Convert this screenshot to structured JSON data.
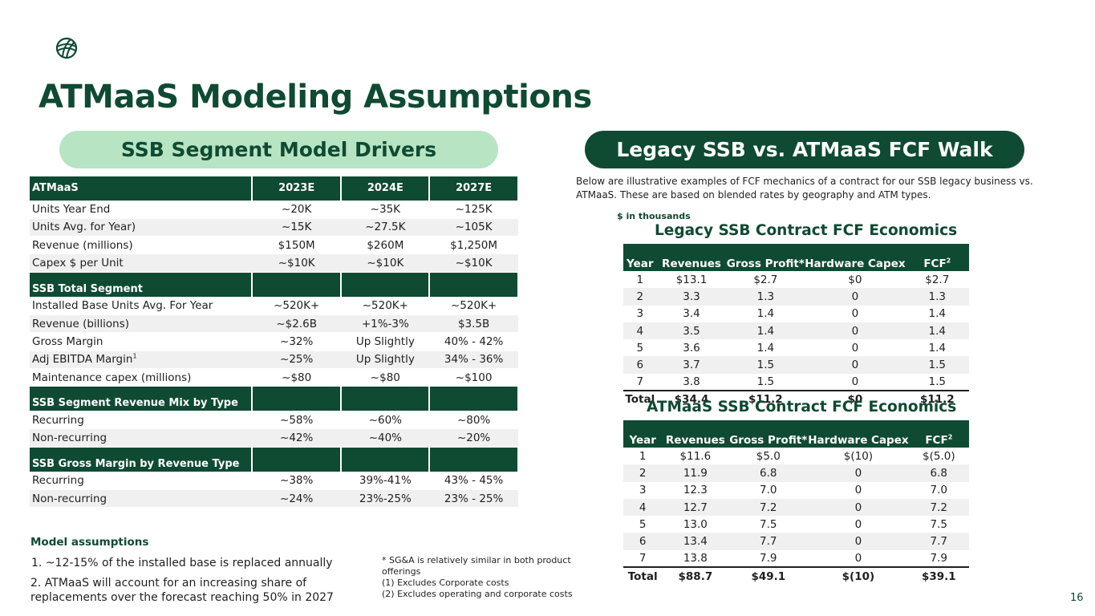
{
  "title": "ATMaaS Modeling Assumptions",
  "page_number": "16",
  "colors": {
    "brand_dark": "#0f4a32",
    "brand_light": "#b7e4c3",
    "row_alt": "#f0f0f0"
  },
  "left_section": {
    "heading": "SSB Segment Model Drivers",
    "columns": [
      "ATMaaS",
      "2023E",
      "2024E",
      "2027E"
    ],
    "rows": [
      {
        "type": "data",
        "cells": [
          "Units Year End",
          "~20K",
          "~35K",
          "~125K"
        ]
      },
      {
        "type": "data",
        "cells": [
          "Units Avg. for Year)",
          "~15K",
          "~27.5K",
          "~105K"
        ]
      },
      {
        "type": "data",
        "cells": [
          "Revenue (millions)",
          "$150M",
          "$260M",
          "$1,250M"
        ]
      },
      {
        "type": "data",
        "cells": [
          "Capex $ per Unit",
          "~$10K",
          "~$10K",
          "~$10K"
        ]
      },
      {
        "type": "section",
        "label": "SSB Total Segment"
      },
      {
        "type": "data",
        "cells": [
          "Installed Base Units Avg. For Year",
          "~520K+",
          "~520K+",
          "~520K+"
        ]
      },
      {
        "type": "data",
        "cells": [
          "Revenue (billions)",
          "~$2.6B",
          "+1%-3%",
          "$3.5B"
        ]
      },
      {
        "type": "data",
        "cells": [
          "Gross Margin",
          "~32%",
          "Up Slightly",
          "40% - 42%"
        ]
      },
      {
        "type": "data",
        "cells": [
          "Adj EBITDA Margin",
          "~25%",
          "Up Slightly",
          "34% - 36%"
        ],
        "sup": "1"
      },
      {
        "type": "data",
        "cells": [
          "Maintenance capex (millions)",
          "~$80",
          "~$80",
          "~$100"
        ]
      },
      {
        "type": "section",
        "label": "SSB Segment Revenue  Mix by Type"
      },
      {
        "type": "data",
        "cells": [
          "Recurring",
          "~58%",
          "~60%",
          "~80%"
        ]
      },
      {
        "type": "data",
        "cells": [
          "Non-recurring",
          "~42%",
          "~40%",
          "~20%"
        ]
      },
      {
        "type": "section",
        "label": "SSB Gross Margin by Revenue Type"
      },
      {
        "type": "data",
        "cells": [
          "Recurring",
          "~38%",
          "39%-41%",
          "43% - 45%"
        ]
      },
      {
        "type": "data",
        "cells": [
          "Non-recurring",
          "~24%",
          "23%-25%",
          "23%  - 25%"
        ]
      }
    ]
  },
  "right_section": {
    "heading": "Legacy SSB vs. ATMaaS FCF  Walk",
    "intro": "Below are illustrative examples of FCF mechanics of a contract for our SSB legacy business vs.  ATMaaS. These are based on blended rates by geography and ATM types.",
    "units_note": "$ in thousands",
    "legacy": {
      "title": "Legacy SSB Contract FCF Economics",
      "columns": [
        "Year",
        "Revenues",
        "Gross Profit*",
        "Hardware Capex",
        "FCF"
      ],
      "fcf_sup": "2",
      "rows": [
        [
          "1",
          "$13.1",
          "$2.7",
          "$0",
          "$2.7"
        ],
        [
          "2",
          "3.3",
          "1.3",
          "0",
          "1.3"
        ],
        [
          "3",
          "3.4",
          "1.4",
          "0",
          "1.4"
        ],
        [
          "4",
          "3.5",
          "1.4",
          "0",
          "1.4"
        ],
        [
          "5",
          "3.6",
          "1.4",
          "0",
          "1.4"
        ],
        [
          "6",
          "3.7",
          "1.5",
          "0",
          "1.5"
        ],
        [
          "7",
          "3.8",
          "1.5",
          "0",
          "1.5"
        ]
      ],
      "total": [
        "Total",
        "$34.4",
        "$11.2",
        "$0",
        "$11.2"
      ]
    },
    "atmaas": {
      "title": "ATMaaS SSB Contract FCF Economics",
      "columns": [
        "Year",
        "Revenues",
        "Gross Profit*",
        "Hardware Capex",
        "FCF"
      ],
      "fcf_sup": "2",
      "rows": [
        [
          "1",
          "$11.6",
          "$5.0",
          "$(10)",
          "$(5.0)"
        ],
        [
          "2",
          "11.9",
          "6.8",
          "0",
          "6.8"
        ],
        [
          "3",
          "12.3",
          "7.0",
          "0",
          "7.0"
        ],
        [
          "4",
          "12.7",
          "7.2",
          "0",
          "7.2"
        ],
        [
          "5",
          "13.0",
          "7.5",
          "0",
          "7.5"
        ],
        [
          "6",
          "13.4",
          "7.7",
          "0",
          "7.7"
        ],
        [
          "7",
          "13.8",
          "7.9",
          "0",
          "7.9"
        ]
      ],
      "total": [
        "Total",
        "$88.7",
        "$49.1",
        "$(10)",
        "$39.1"
      ]
    }
  },
  "model_assumptions": {
    "heading": "Model assumptions",
    "items": [
      "1. ~12-15% of the installed base is replaced annually",
      "2. ATMaaS will account for an increasing share of replacements over the forecast reaching 50% in 2027"
    ]
  },
  "footnotes": [
    "*  SG&A is relatively similar in both product offerings",
    "(1) Excludes Corporate costs",
    "(2) Excludes operating and corporate costs"
  ]
}
